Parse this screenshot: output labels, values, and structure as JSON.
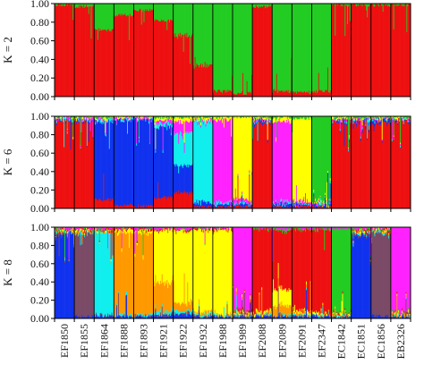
{
  "chart_data": [
    {
      "type": "bar",
      "stacked": true,
      "ylabel": "K = 2",
      "ylim": [
        0,
        1
      ],
      "yticks": [
        "0.00",
        "0.20",
        "0.40",
        "0.60",
        "0.80",
        "1.00"
      ],
      "categories": [
        "EF1850",
        "EF1855",
        "EF1864",
        "EF1888",
        "EF1893",
        "EF1921",
        "EF1922",
        "EF1932",
        "EF1988",
        "EF1989",
        "EF2088",
        "EF2089",
        "EF2091",
        "EF2347",
        "EC1842",
        "EC1851",
        "EC1856",
        "EB2326"
      ],
      "series_colors": [
        "#ee1111",
        "#22cc22"
      ],
      "series": [
        {
          "name": "",
          "color": "#ee1111",
          "values": [
            0.99,
            0.97,
            0.72,
            0.88,
            0.93,
            0.82,
            0.66,
            0.34,
            0.06,
            0.04,
            0.97,
            0.06,
            0.05,
            0.06,
            0.99,
            0.99,
            0.99,
            0.99
          ]
        },
        {
          "name": "",
          "color": "#22cc22",
          "values": [
            0.01,
            0.03,
            0.28,
            0.12,
            0.07,
            0.18,
            0.34,
            0.66,
            0.94,
            0.96,
            0.03,
            0.94,
            0.95,
            0.94,
            0.01,
            0.01,
            0.01,
            0.01
          ]
        }
      ]
    },
    {
      "type": "bar",
      "stacked": true,
      "ylabel": "K = 6",
      "ylim": [
        0,
        1
      ],
      "yticks": [
        "0.00",
        "0.20",
        "0.40",
        "0.60",
        "0.80",
        "1.00"
      ],
      "categories": [
        "EF1850",
        "EF1855",
        "EF1864",
        "EF1888",
        "EF1893",
        "EF1921",
        "EF1922",
        "EF1932",
        "EF1988",
        "EF1989",
        "EF2088",
        "EF2089",
        "EF2091",
        "EF2347",
        "EC1842",
        "EC1851",
        "EC1856",
        "EB2326"
      ],
      "series_colors": [
        "#ee1111",
        "#1133ee",
        "#11eeee",
        "#ff22ff",
        "#ffff00",
        "#22cc22"
      ],
      "series": [
        {
          "name": "",
          "color": "#ee1111",
          "values": [
            0.96,
            0.96,
            0.1,
            0.04,
            0.03,
            0.12,
            0.18,
            0.02,
            0.02,
            0.02,
            0.94,
            0.02,
            0.02,
            0.02,
            0.95,
            0.94,
            0.93,
            0.95
          ]
        },
        {
          "name": "",
          "color": "#1133ee",
          "values": [
            0.01,
            0.01,
            0.85,
            0.93,
            0.94,
            0.78,
            0.3,
            0.05,
            0.02,
            0.02,
            0.02,
            0.03,
            0.02,
            0.02,
            0.01,
            0.02,
            0.03,
            0.01
          ]
        },
        {
          "name": "",
          "color": "#11eeee",
          "values": [
            0.01,
            0.01,
            0.02,
            0.01,
            0.01,
            0.04,
            0.35,
            0.88,
            0.02,
            0.02,
            0.01,
            0.02,
            0.01,
            0.01,
            0.01,
            0.01,
            0.01,
            0.01
          ]
        },
        {
          "name": "",
          "color": "#ff22ff",
          "values": [
            0.01,
            0.01,
            0.01,
            0.01,
            0.01,
            0.03,
            0.12,
            0.02,
            0.9,
            0.04,
            0.01,
            0.88,
            0.03,
            0.01,
            0.01,
            0.01,
            0.01,
            0.01
          ]
        },
        {
          "name": "",
          "color": "#ffff00",
          "values": [
            0.01,
            0.01,
            0.01,
            0.01,
            0.01,
            0.02,
            0.04,
            0.02,
            0.03,
            0.9,
            0.01,
            0.04,
            0.9,
            0.02,
            0.01,
            0.01,
            0.01,
            0.01
          ]
        },
        {
          "name": "",
          "color": "#22cc22",
          "values": [
            0.0,
            0.0,
            0.01,
            0.0,
            0.0,
            0.01,
            0.01,
            0.01,
            0.01,
            0.0,
            0.01,
            0.01,
            0.02,
            0.92,
            0.01,
            0.01,
            0.01,
            0.01
          ]
        }
      ]
    },
    {
      "type": "bar",
      "stacked": true,
      "ylabel": "K = 8",
      "ylim": [
        0,
        1
      ],
      "yticks": [
        "0.00",
        "0.20",
        "0.40",
        "0.60",
        "0.80",
        "1.00"
      ],
      "categories": [
        "EF1850",
        "EF1855",
        "EF1864",
        "EF1888",
        "EF1893",
        "EF1921",
        "EF1922",
        "EF1932",
        "EF1988",
        "EF1989",
        "EF2088",
        "EF2089",
        "EF2091",
        "EF2347",
        "EC1842",
        "EC1851",
        "EC1856",
        "EB2326"
      ],
      "series_colors": [
        "#1133ee",
        "#7a4a66",
        "#11eeee",
        "#ff9900",
        "#ffff00",
        "#ee1111",
        "#22cc22",
        "#ff22ff"
      ],
      "series": [
        {
          "name": "",
          "color": "#1133ee",
          "values": [
            0.93,
            0.02,
            0.03,
            0.02,
            0.02,
            0.03,
            0.04,
            0.02,
            0.02,
            0.02,
            0.02,
            0.02,
            0.02,
            0.02,
            0.01,
            0.92,
            0.03,
            0.01
          ]
        },
        {
          "name": "",
          "color": "#7a4a66",
          "values": [
            0.02,
            0.93,
            0.01,
            0.01,
            0.01,
            0.01,
            0.02,
            0.01,
            0.01,
            0.01,
            0.01,
            0.01,
            0.01,
            0.01,
            0.01,
            0.02,
            0.92,
            0.01
          ]
        },
        {
          "name": "",
          "color": "#11eeee",
          "values": [
            0.01,
            0.01,
            0.92,
            0.02,
            0.02,
            0.03,
            0.03,
            0.02,
            0.01,
            0.01,
            0.01,
            0.01,
            0.01,
            0.01,
            0.01,
            0.01,
            0.01,
            0.01
          ]
        },
        {
          "name": "",
          "color": "#ff9900",
          "values": [
            0.01,
            0.01,
            0.01,
            0.9,
            0.9,
            0.32,
            0.08,
            0.03,
            0.02,
            0.02,
            0.01,
            0.1,
            0.02,
            0.01,
            0.01,
            0.01,
            0.01,
            0.01
          ]
        },
        {
          "name": "",
          "color": "#ffff00",
          "values": [
            0.01,
            0.01,
            0.01,
            0.03,
            0.03,
            0.58,
            0.8,
            0.9,
            0.92,
            0.02,
            0.02,
            0.18,
            0.02,
            0.01,
            0.01,
            0.01,
            0.01,
            0.01
          ]
        },
        {
          "name": "",
          "color": "#ee1111",
          "values": [
            0.01,
            0.01,
            0.01,
            0.01,
            0.01,
            0.01,
            0.01,
            0.01,
            0.01,
            0.02,
            0.91,
            0.64,
            0.9,
            0.92,
            0.01,
            0.01,
            0.01,
            0.01
          ]
        },
        {
          "name": "",
          "color": "#22cc22",
          "values": [
            0.0,
            0.0,
            0.0,
            0.0,
            0.0,
            0.0,
            0.0,
            0.0,
            0.0,
            0.0,
            0.01,
            0.02,
            0.01,
            0.01,
            0.93,
            0.01,
            0.0,
            0.01
          ]
        },
        {
          "name": "",
          "color": "#ff22ff",
          "values": [
            0.01,
            0.01,
            0.01,
            0.01,
            0.01,
            0.02,
            0.02,
            0.01,
            0.01,
            0.9,
            0.01,
            0.02,
            0.01,
            0.01,
            0.01,
            0.01,
            0.01,
            0.93
          ]
        }
      ]
    }
  ]
}
